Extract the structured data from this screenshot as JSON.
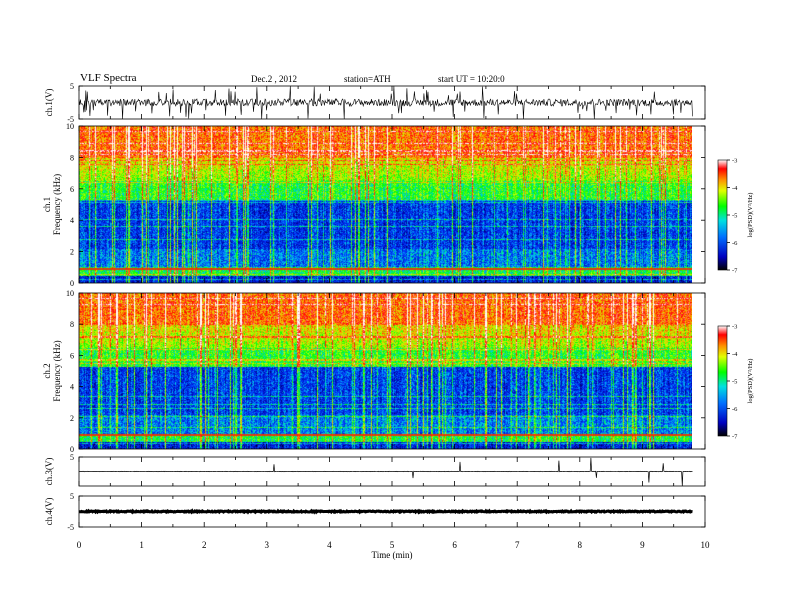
{
  "header": {
    "title": "VLF Spectra",
    "date": "Dec.2 , 2012",
    "station": "station=ATH",
    "start": "start UT = 10:20:0"
  },
  "chart_data": {
    "type": "heatmap",
    "title": "VLF Spectra",
    "xlabel": "Time (min)",
    "xlim": [
      0,
      10
    ],
    "xticks": [
      "0",
      "1",
      "2",
      "3",
      "4",
      "5",
      "6",
      "7",
      "8",
      "9",
      "10"
    ],
    "data_end_min": 9.8,
    "panels": [
      {
        "id": "ch1-waveform",
        "kind": "line",
        "ylabel": "ch.1(V)",
        "ylim": [
          -5,
          5
        ],
        "yticks": [
          "5",
          "-5"
        ]
      },
      {
        "id": "ch1-spectrogram",
        "kind": "heatmap",
        "ylabel_channel": "ch.1",
        "ylabel": "Frequency (kHz)",
        "ylim": [
          0,
          10
        ],
        "yticks": [
          "0",
          "2",
          "4",
          "6",
          "8",
          "10"
        ],
        "colorbar": {
          "label": "log(PSD)(V²/Hz)",
          "range": [
            -7,
            -3
          ],
          "ticks": [
            "-3",
            "-4",
            "-5",
            "-6",
            "-7"
          ]
        }
      },
      {
        "id": "ch2-spectrogram",
        "kind": "heatmap",
        "ylabel_channel": "ch.2",
        "ylabel": "Frequency (kHz)",
        "ylim": [
          0,
          10
        ],
        "yticks": [
          "0",
          "2",
          "4",
          "6",
          "8",
          "10"
        ],
        "colorbar": {
          "label": "log(PSD)(V²/Hz)",
          "range": [
            -7,
            -3
          ],
          "ticks": [
            "-3",
            "-4",
            "-5",
            "-6",
            "-7"
          ]
        }
      },
      {
        "id": "ch3-waveform",
        "kind": "line",
        "ylabel": "ch.3(V)",
        "ylim": [
          -5,
          5
        ],
        "yticks": [
          "5"
        ]
      },
      {
        "id": "ch4-waveform",
        "kind": "line",
        "ylabel": "ch.4(V)",
        "ylim": [
          -5,
          5
        ],
        "yticks": [
          "5",
          "-5"
        ]
      }
    ],
    "colors": {
      "spectrum_low": "#000080",
      "spectrum_mid": "#00ff00",
      "spectrum_high": "#ff0000"
    }
  }
}
